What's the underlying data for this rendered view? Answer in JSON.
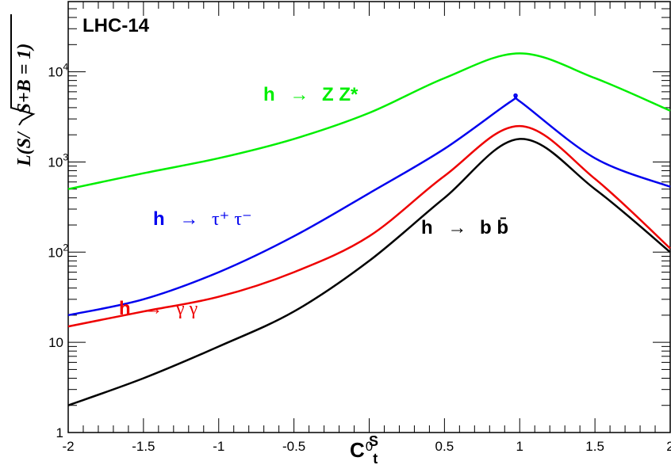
{
  "chart_data": {
    "type": "line",
    "title": "LHC-14",
    "xlabel": {
      "main": "C",
      "sub": "t",
      "sup": "S"
    },
    "ylabel": {
      "pre": "L(S/",
      "radicand": "S+B = 1)"
    },
    "xlim": [
      -2,
      2
    ],
    "ylim": [
      1,
      60000
    ],
    "yscale": "log",
    "grid": false,
    "x_tick_labels": [
      "-2",
      "-1.5",
      "-1",
      "-0.5",
      "0",
      "0.5",
      "1",
      "1.5",
      "2"
    ],
    "y_tick_labels": [
      {
        "value": 1,
        "base": "1",
        "exp": ""
      },
      {
        "value": 10,
        "base": "10",
        "exp": ""
      },
      {
        "value": 100,
        "base": "10",
        "exp": "2"
      },
      {
        "value": 1000,
        "base": "10",
        "exp": "3"
      },
      {
        "value": 10000,
        "base": "10",
        "exp": "4"
      }
    ],
    "series": [
      {
        "name": "h → Z Z*",
        "label": {
          "h": "h",
          "arrow": "→",
          "rest": "Z Z*"
        },
        "color": "#00ee00",
        "x": [
          -2,
          -1.5,
          -1,
          -0.5,
          0,
          0.5,
          1,
          1.5,
          2
        ],
        "y": [
          500,
          750,
          1100,
          1800,
          3500,
          8500,
          16000,
          8500,
          3700
        ]
      },
      {
        "name": "h → τ⁺ τ⁻",
        "label": {
          "h": "h",
          "arrow": "→",
          "rest": "τ⁺ τ⁻"
        },
        "color": "#0000ee",
        "x": [
          -2,
          -1.5,
          -1,
          -0.5,
          0,
          0.5,
          0.95,
          1.0,
          1.5,
          2
        ],
        "y": [
          20,
          30,
          60,
          150,
          450,
          1400,
          4800,
          4700,
          1100,
          530
        ]
      },
      {
        "name": "h → γ γ",
        "label": {
          "h": "h",
          "arrow": "→",
          "rest": "γ  γ"
        },
        "color": "#ee0000",
        "x": [
          -2,
          -1.5,
          -1,
          -0.5,
          0,
          0.5,
          1,
          1.5,
          2
        ],
        "y": [
          15,
          22,
          32,
          60,
          150,
          700,
          2500,
          650,
          110
        ]
      },
      {
        "name": "h → b b̄",
        "label": {
          "h": "h",
          "arrow": "→",
          "rest": "b  b̄"
        },
        "color": "#000000",
        "x": [
          -2,
          -1.5,
          -1,
          -0.5,
          0,
          0.5,
          1,
          1.5,
          2
        ],
        "y": [
          2,
          4,
          9,
          22,
          80,
          400,
          1800,
          500,
          100
        ]
      }
    ]
  }
}
